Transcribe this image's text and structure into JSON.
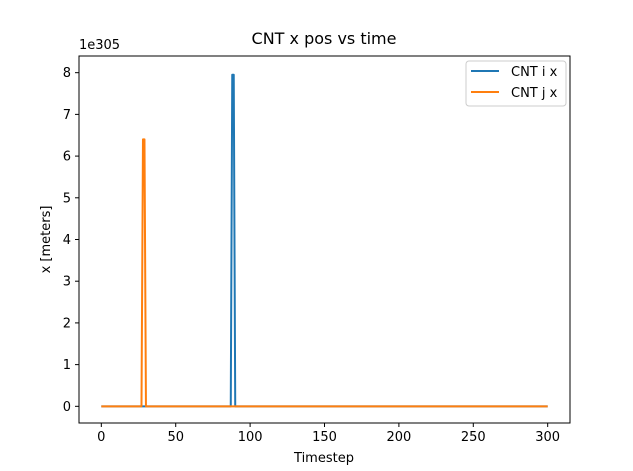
{
  "chart_data": {
    "type": "line",
    "title": "CNT x pos vs time",
    "xlabel": "Timestep",
    "ylabel": "x [meters]",
    "offset_text": "1e305",
    "xlim": [
      -15,
      315
    ],
    "ylim": [
      -0.4,
      8.4
    ],
    "xticks": [
      0,
      50,
      100,
      150,
      200,
      250,
      300
    ],
    "yticks": [
      0,
      1,
      2,
      3,
      4,
      5,
      6,
      7,
      8
    ],
    "grid": false,
    "legend_position": "top-right",
    "series": [
      {
        "name": "CNT i x",
        "color": "#1f77b4",
        "x": [
          0,
          87,
          88,
          89,
          90,
          300
        ],
        "y": [
          0,
          0,
          7.95,
          7.95,
          0,
          0
        ]
      },
      {
        "name": "CNT j x",
        "color": "#ff7f0e",
        "x": [
          0,
          27,
          28,
          29,
          30,
          300
        ],
        "y": [
          0,
          0,
          6.4,
          6.4,
          0,
          0
        ]
      }
    ]
  }
}
